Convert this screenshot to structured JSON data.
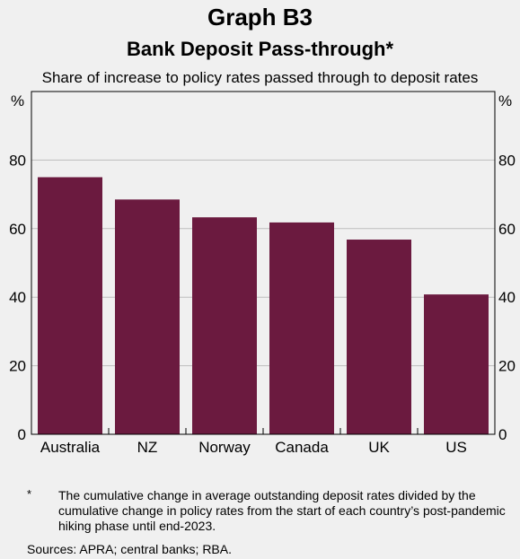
{
  "header": {
    "graph_label": "Graph B3",
    "title": "Bank Deposit Pass-through*",
    "subtitle": "Share of increase to policy rates passed through to deposit rates"
  },
  "chart_data": {
    "type": "bar",
    "categories": [
      "Australia",
      "NZ",
      "Norway",
      "Canada",
      "UK",
      "US"
    ],
    "series": [
      {
        "values": [
          75,
          68.5,
          63.3,
          61.8,
          56.8,
          40.8
        ]
      }
    ],
    "ylabel_left": "%",
    "ylabel_right": "%",
    "ylim": [
      0,
      100
    ],
    "yticks": [
      0,
      20,
      40,
      60,
      80
    ],
    "grid": true,
    "bar_color": "#6b1a3f"
  },
  "footnote": {
    "marker": "*",
    "text": "The cumulative change in average outstanding deposit rates divided by the cumulative change in policy rates from the start of each country’s post-pandemic hiking phase until end-2023."
  },
  "sources": "Sources: APRA; central banks; RBA."
}
